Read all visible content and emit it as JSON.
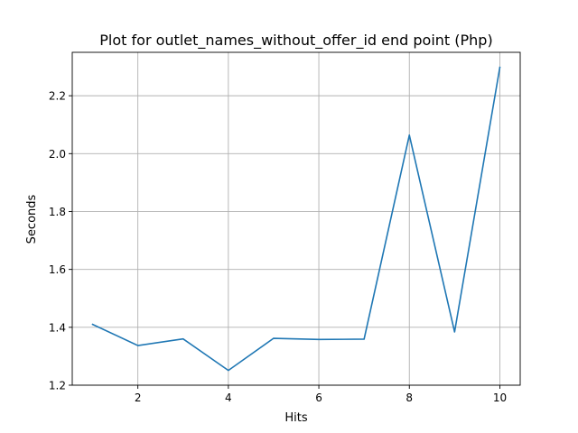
{
  "chart_data": {
    "type": "line",
    "title": "Plot for outlet_names_without_offer_id end point (Php)",
    "xlabel": "Hits",
    "ylabel": "Seconds",
    "xlim": [
      0.55,
      10.45
    ],
    "ylim": [
      1.2,
      2.35
    ],
    "xticks": [
      2,
      4,
      6,
      8,
      10
    ],
    "xtick_labels": [
      "2",
      "4",
      "6",
      "8",
      "10"
    ],
    "yticks": [
      1.2,
      1.4,
      1.6,
      1.8,
      2.0,
      2.2
    ],
    "ytick_labels": [
      "1.2",
      "1.4",
      "1.6",
      "1.8",
      "2.0",
      "2.2"
    ],
    "grid": true,
    "x": [
      1,
      2,
      3,
      4,
      5,
      6,
      7,
      8,
      9,
      10
    ],
    "series": [
      {
        "color": "#1f77b4",
        "values": [
          1.41,
          1.337,
          1.36,
          1.251,
          1.362,
          1.358,
          1.359,
          2.064,
          1.384,
          2.298
        ]
      }
    ]
  }
}
